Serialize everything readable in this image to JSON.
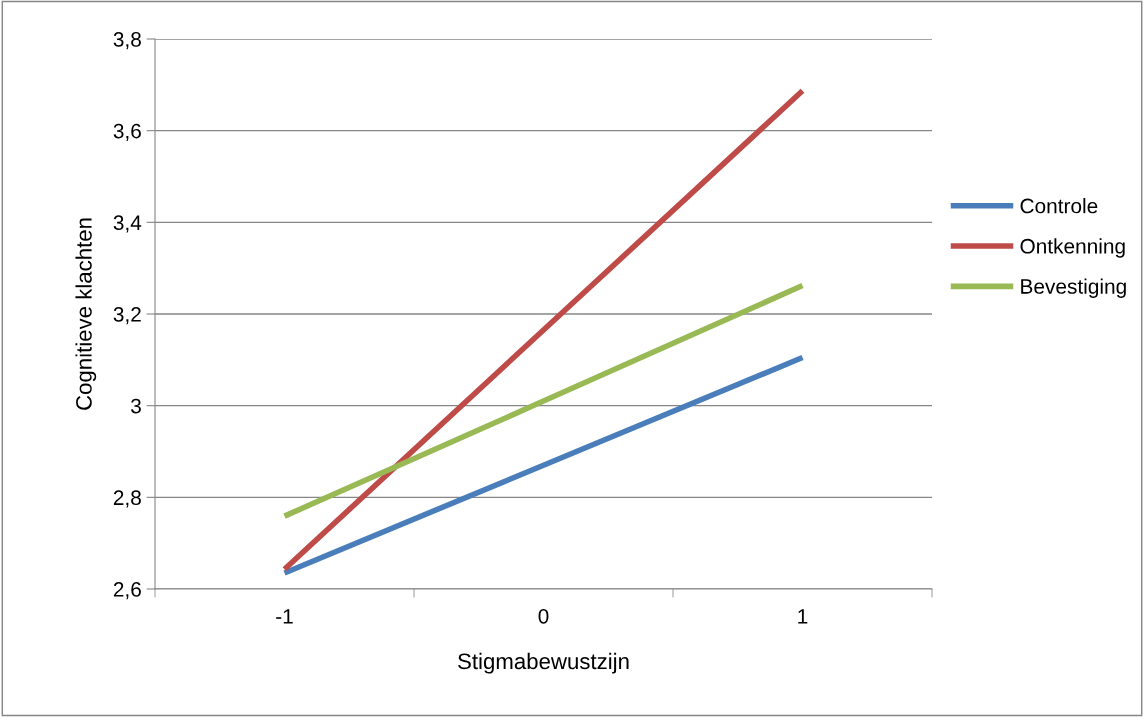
{
  "chart_data": {
    "type": "line",
    "xlabel": "Stigmabewustzijn",
    "ylabel": "Cognitieve klachten",
    "categories": [
      "-1",
      "0",
      "1"
    ],
    "series": [
      {
        "name": "Controle",
        "color": "#4a7ebb",
        "values": [
          2.635,
          2.87,
          3.105
        ]
      },
      {
        "name": "Ontkenning",
        "color": "#be4b48",
        "values": [
          2.643,
          3.165,
          3.687
        ]
      },
      {
        "name": "Bevestiging",
        "color": "#98b954",
        "values": [
          2.759,
          3.01,
          3.262
        ]
      }
    ],
    "ylim": [
      2.6,
      3.8
    ],
    "yticks": [
      {
        "value": 2.6,
        "label": "2,6"
      },
      {
        "value": 2.8,
        "label": "2,8"
      },
      {
        "value": 3,
        "label": "3"
      },
      {
        "value": 3.2,
        "label": "3,2"
      },
      {
        "value": 3.4,
        "label": "3,4"
      },
      {
        "value": 3.6,
        "label": "3,6"
      },
      {
        "value": 3.8,
        "label": "3,8"
      }
    ],
    "grid": "y",
    "legend": "right",
    "marker": "none",
    "line_style": "solid"
  }
}
